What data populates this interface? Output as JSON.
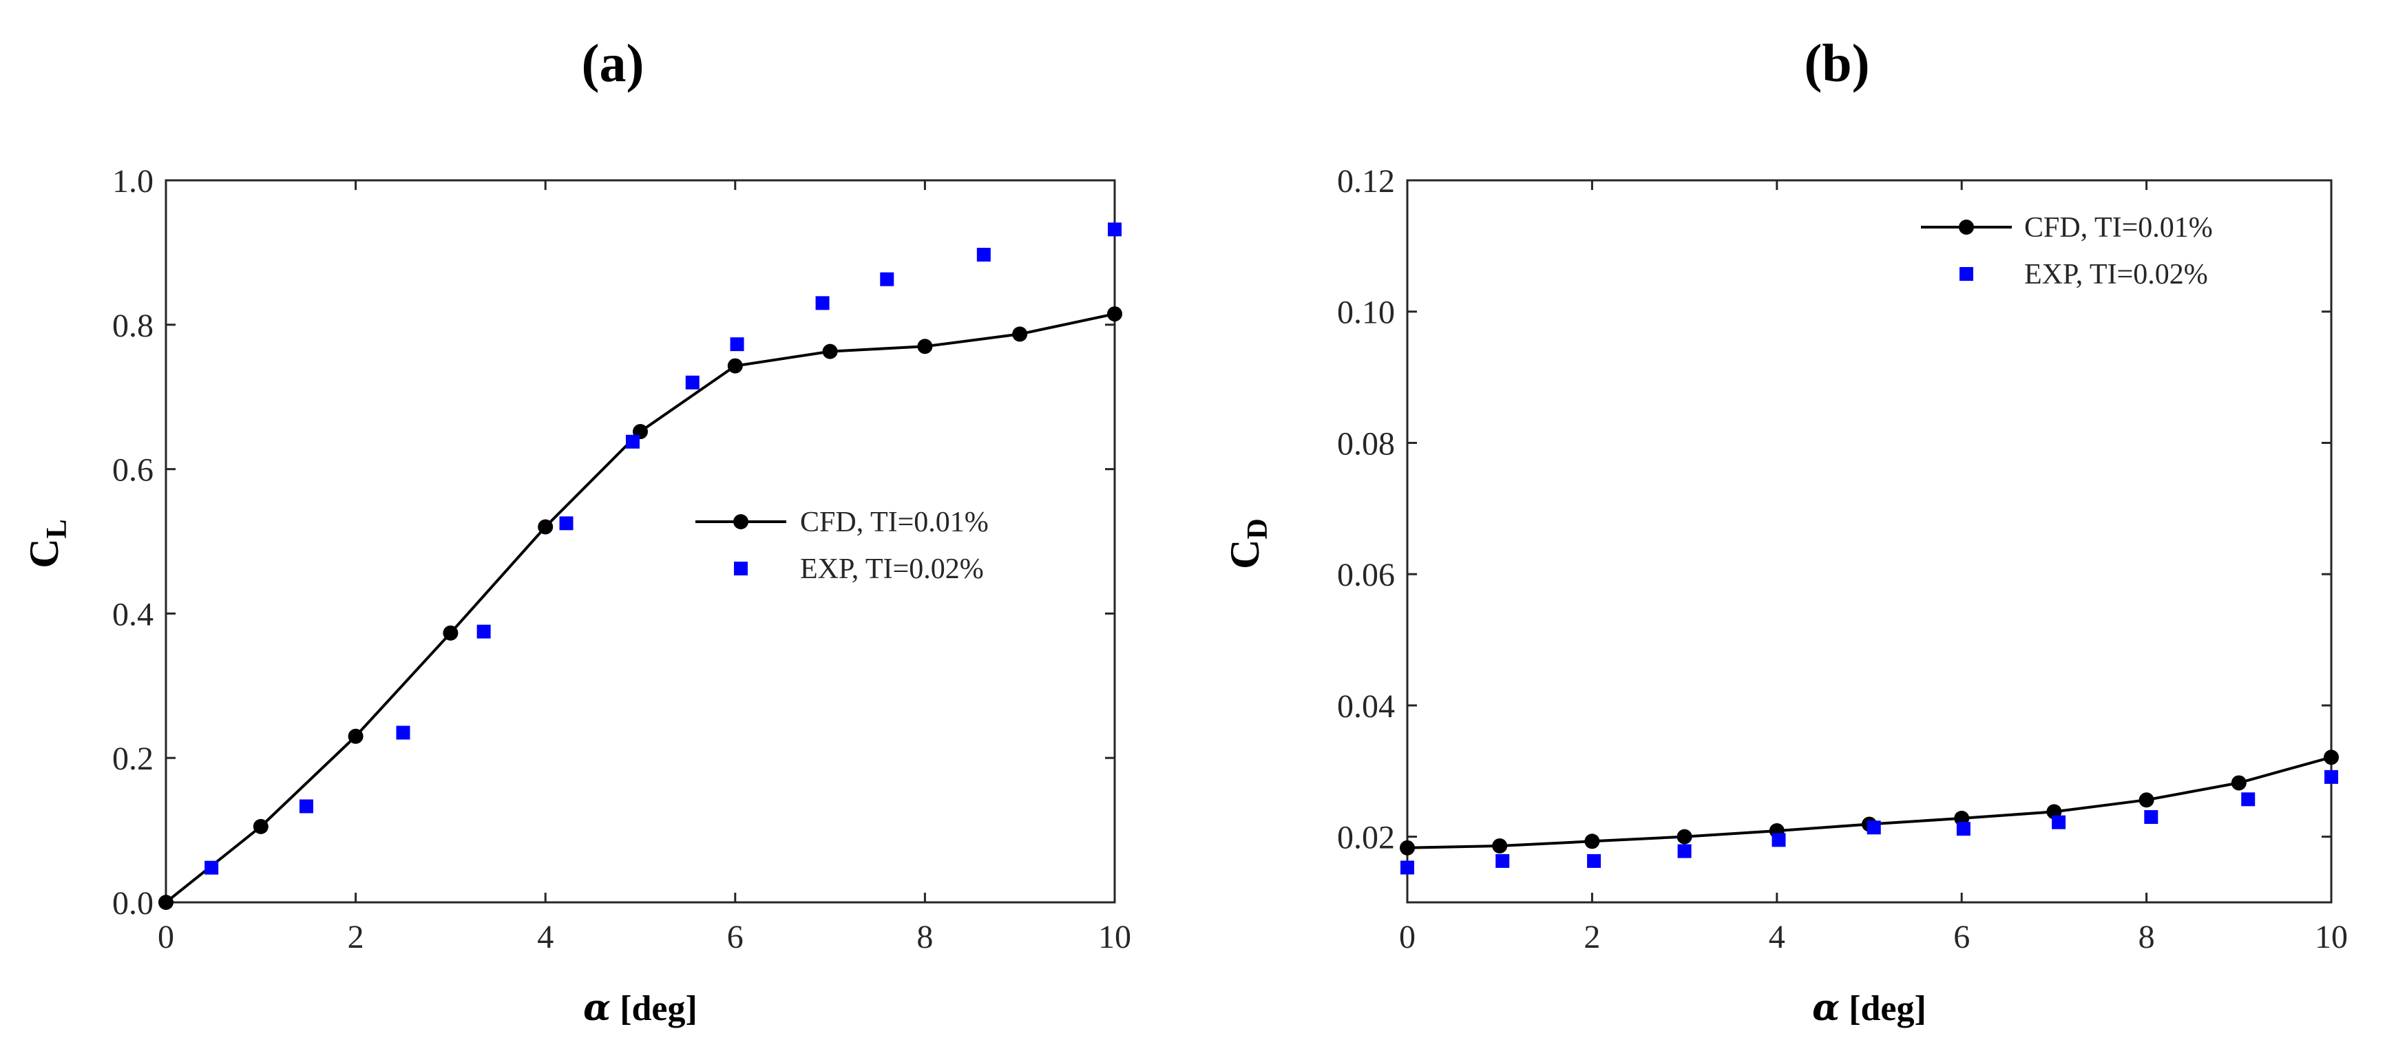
{
  "figure": {
    "colors": {
      "cfd": "#000000",
      "exp": "#0000FF",
      "axis": "#262626"
    }
  },
  "chart_data": [
    {
      "type": "line",
      "panel_label": "(a)",
      "title": "",
      "xlabel_symbol": "α",
      "xlabel_text": " [deg]",
      "ylabel_main": "C",
      "ylabel_sub": "L",
      "xlim": [
        0,
        10
      ],
      "ylim": [
        0,
        1.0
      ],
      "xticks": [
        0,
        2,
        4,
        6,
        8,
        10
      ],
      "xtick_labels": [
        "0",
        "2",
        "4",
        "6",
        "8",
        "10"
      ],
      "yticks": [
        0,
        0.2,
        0.4,
        0.6,
        0.8,
        1.0
      ],
      "ytick_labels": [
        "0.0",
        "0.2",
        "0.4",
        "0.6",
        "0.8",
        "1.0"
      ],
      "legend_position": "center-right",
      "series": [
        {
          "name": "CFD, TI=0.01%",
          "style": "line-circle",
          "color": "#000000",
          "x": [
            0,
            1,
            2,
            3,
            4,
            5,
            6,
            7,
            8,
            9,
            10
          ],
          "y": [
            0.0,
            0.105,
            0.23,
            0.373,
            0.52,
            0.652,
            0.743,
            0.763,
            0.77,
            0.787,
            0.815
          ]
        },
        {
          "name": "EXP, TI=0.02%",
          "style": "square",
          "color": "#0000FF",
          "x": [
            0.48,
            1.48,
            2.5,
            3.35,
            4.22,
            4.92,
            5.55,
            6.02,
            6.92,
            7.6,
            8.62,
            10.0
          ],
          "y": [
            0.048,
            0.133,
            0.235,
            0.375,
            0.525,
            0.638,
            0.72,
            0.773,
            0.83,
            0.863,
            0.897,
            0.932
          ]
        }
      ]
    },
    {
      "type": "line",
      "panel_label": "(b)",
      "title": "",
      "xlabel_symbol": "α",
      "xlabel_text": " [deg]",
      "ylabel_main": "C",
      "ylabel_sub": "D",
      "xlim": [
        0,
        10
      ],
      "ylim": [
        0.01,
        0.12
      ],
      "xticks": [
        0,
        2,
        4,
        6,
        8,
        10
      ],
      "xtick_labels": [
        "0",
        "2",
        "4",
        "6",
        "8",
        "10"
      ],
      "yticks": [
        0.02,
        0.04,
        0.06,
        0.08,
        0.1,
        0.12
      ],
      "ytick_labels": [
        "0.02",
        "0.04",
        "0.06",
        "0.08",
        "0.10",
        "0.12"
      ],
      "legend_position": "top-right",
      "series": [
        {
          "name": "CFD, TI=0.01%",
          "style": "line-circle",
          "color": "#000000",
          "x": [
            0,
            1,
            2,
            3,
            4,
            5,
            6,
            7,
            8,
            9,
            10
          ],
          "y": [
            0.0183,
            0.0186,
            0.0193,
            0.02,
            0.0209,
            0.0219,
            0.0228,
            0.0238,
            0.0256,
            0.0282,
            0.0321
          ]
        },
        {
          "name": "EXP, TI=0.02%",
          "style": "square",
          "color": "#0000FF",
          "x": [
            0.0,
            1.03,
            2.02,
            3.0,
            4.02,
            5.05,
            6.02,
            7.05,
            8.05,
            9.1,
            10.0
          ],
          "y": [
            0.0153,
            0.0163,
            0.0163,
            0.0178,
            0.0195,
            0.0214,
            0.0212,
            0.0222,
            0.023,
            0.0257,
            0.0291
          ]
        }
      ]
    }
  ]
}
